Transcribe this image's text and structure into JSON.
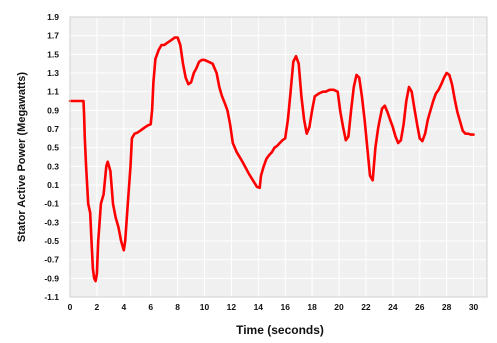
{
  "chart_data": {
    "type": "line",
    "title": "",
    "xlabel": "Time (seconds)",
    "ylabel": "Stator Active Power (Megawatts)",
    "xlim": [
      0,
      31
    ],
    "ylim": [
      -1.1,
      1.9
    ],
    "xticks": [
      0,
      2,
      4,
      6,
      8,
      10,
      12,
      14,
      16,
      18,
      20,
      22,
      24,
      26,
      28,
      30
    ],
    "yticks": [
      -1.1,
      -0.9,
      -0.7,
      -0.5,
      -0.3,
      -0.1,
      0.1,
      0.3,
      0.5,
      0.7,
      0.9,
      1.1,
      1.3,
      1.5,
      1.7,
      1.9
    ],
    "xtick_labels": [
      "0",
      "2",
      "4",
      "6",
      "8",
      "10",
      "12",
      "14",
      "16",
      "18",
      "20",
      "22",
      "24",
      "26",
      "28",
      "30"
    ],
    "ytick_labels": [
      "-1.1",
      "-0.9",
      "-0.7",
      "-0.5",
      "-0.3",
      "-0.1",
      "0.1",
      "0.3",
      "0.5",
      "0.7",
      "0.9",
      "1.1",
      "1.3",
      "1.5",
      "1.7",
      "1.9"
    ],
    "grid": true,
    "line_color": "#ff0000",
    "background_color": "#f0f0f0",
    "series": [
      {
        "x": [
          0,
          1.0,
          1.05,
          1.1,
          1.2,
          1.35,
          1.5,
          1.6,
          1.7,
          1.8,
          1.9,
          2.0,
          2.1,
          2.2,
          2.3,
          2.5,
          2.7,
          2.8,
          3.0,
          3.2,
          3.4,
          3.6,
          3.8,
          4.0,
          4.1,
          4.3,
          4.5,
          4.6,
          4.8,
          5.0,
          5.2,
          5.4,
          5.6,
          5.8,
          6.0,
          6.1,
          6.2,
          6.35,
          6.6,
          6.8,
          7.0,
          7.2,
          7.4,
          7.6,
          7.8,
          8.0,
          8.2,
          8.4,
          8.6,
          8.8,
          9.0,
          9.2,
          9.4,
          9.6,
          9.8,
          10.0,
          10.3,
          10.6,
          10.9,
          11.1,
          11.3,
          11.5,
          11.7,
          11.9,
          12.1,
          12.4,
          12.7,
          13.0,
          13.3,
          13.6,
          13.9,
          14.1,
          14.2,
          14.4,
          14.6,
          14.8,
          15.0,
          15.2,
          15.4,
          15.6,
          15.8,
          16.0,
          16.2,
          16.4,
          16.6,
          16.8,
          17.0,
          17.2,
          17.4,
          17.6,
          17.8,
          18.0,
          18.2,
          18.5,
          18.8,
          19.0,
          19.3,
          19.6,
          19.9,
          20.1,
          20.3,
          20.5,
          20.7,
          20.9,
          21.1,
          21.3,
          21.5,
          21.7,
          21.9,
          22.1,
          22.3,
          22.5,
          22.7,
          22.9,
          23.0,
          23.2,
          23.4,
          23.6,
          23.8,
          24.0,
          24.2,
          24.4,
          24.6,
          24.8,
          25.0,
          25.2,
          25.4,
          25.6,
          25.8,
          26.0,
          26.2,
          26.4,
          26.6,
          26.8,
          27.0,
          27.2,
          27.4,
          27.6,
          27.8,
          28.0,
          28.2,
          28.4,
          28.6,
          28.8,
          29.0,
          29.2,
          29.4,
          29.6,
          29.8,
          30.0
        ],
        "y": [
          1.0,
          1.0,
          0.85,
          0.6,
          0.3,
          -0.1,
          -0.2,
          -0.5,
          -0.8,
          -0.9,
          -0.93,
          -0.85,
          -0.5,
          -0.3,
          -0.1,
          0.0,
          0.3,
          0.35,
          0.25,
          -0.1,
          -0.25,
          -0.35,
          -0.5,
          -0.6,
          -0.5,
          -0.1,
          0.3,
          0.6,
          0.65,
          0.66,
          0.68,
          0.7,
          0.72,
          0.74,
          0.75,
          0.9,
          1.2,
          1.45,
          1.55,
          1.6,
          1.6,
          1.62,
          1.64,
          1.66,
          1.68,
          1.68,
          1.6,
          1.4,
          1.25,
          1.18,
          1.2,
          1.3,
          1.35,
          1.42,
          1.44,
          1.44,
          1.42,
          1.4,
          1.3,
          1.15,
          1.05,
          0.98,
          0.9,
          0.75,
          0.55,
          0.45,
          0.38,
          0.3,
          0.22,
          0.15,
          0.08,
          0.07,
          0.2,
          0.3,
          0.38,
          0.42,
          0.45,
          0.5,
          0.52,
          0.55,
          0.58,
          0.6,
          0.8,
          1.1,
          1.42,
          1.48,
          1.4,
          1.05,
          0.8,
          0.65,
          0.72,
          0.9,
          1.05,
          1.08,
          1.1,
          1.1,
          1.12,
          1.12,
          1.1,
          0.88,
          0.72,
          0.58,
          0.62,
          0.9,
          1.15,
          1.28,
          1.25,
          1.05,
          0.8,
          0.5,
          0.2,
          0.15,
          0.5,
          0.7,
          0.78,
          0.92,
          0.95,
          0.88,
          0.8,
          0.72,
          0.62,
          0.55,
          0.58,
          0.75,
          1.0,
          1.15,
          1.1,
          0.92,
          0.75,
          0.6,
          0.57,
          0.65,
          0.8,
          0.9,
          1.0,
          1.08,
          1.12,
          1.18,
          1.25,
          1.3,
          1.28,
          1.18,
          1.02,
          0.88,
          0.78,
          0.68,
          0.65,
          0.65,
          0.64,
          0.64
        ]
      }
    ]
  }
}
